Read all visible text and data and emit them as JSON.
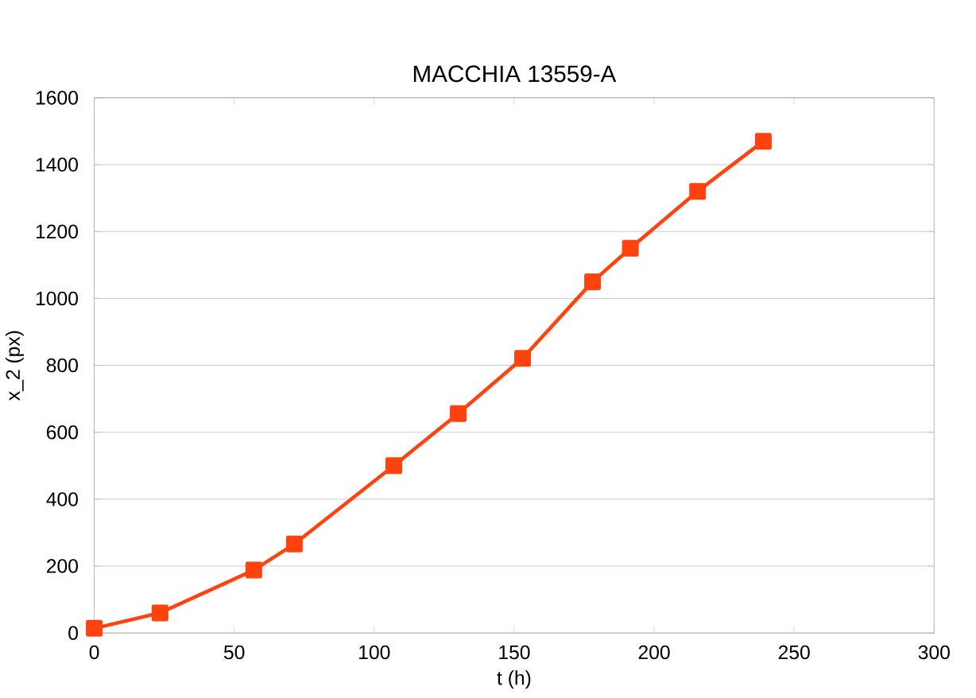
{
  "chart_data": {
    "type": "line",
    "title": "MACCHIA 13559-A",
    "xlabel": "t (h)",
    "ylabel": "x_2 (px)",
    "x": [
      0,
      23.5,
      57,
      71.5,
      107,
      130,
      153,
      178,
      191.5,
      215.5,
      239
    ],
    "series": [
      {
        "color": "#ff420e",
        "values": [
          14,
          60,
          188,
          266,
          500,
          656,
          821,
          1050,
          1150,
          1320,
          1470
        ]
      }
    ],
    "xlim": [
      0,
      300
    ],
    "xticks": [
      0,
      50,
      100,
      150,
      200,
      250,
      300
    ],
    "ylim": [
      0,
      1600
    ],
    "yticks": [
      0,
      200,
      400,
      600,
      800,
      1000,
      1200,
      1400,
      1600
    ],
    "grid": "y",
    "marker": "square",
    "line_style": "solid"
  }
}
